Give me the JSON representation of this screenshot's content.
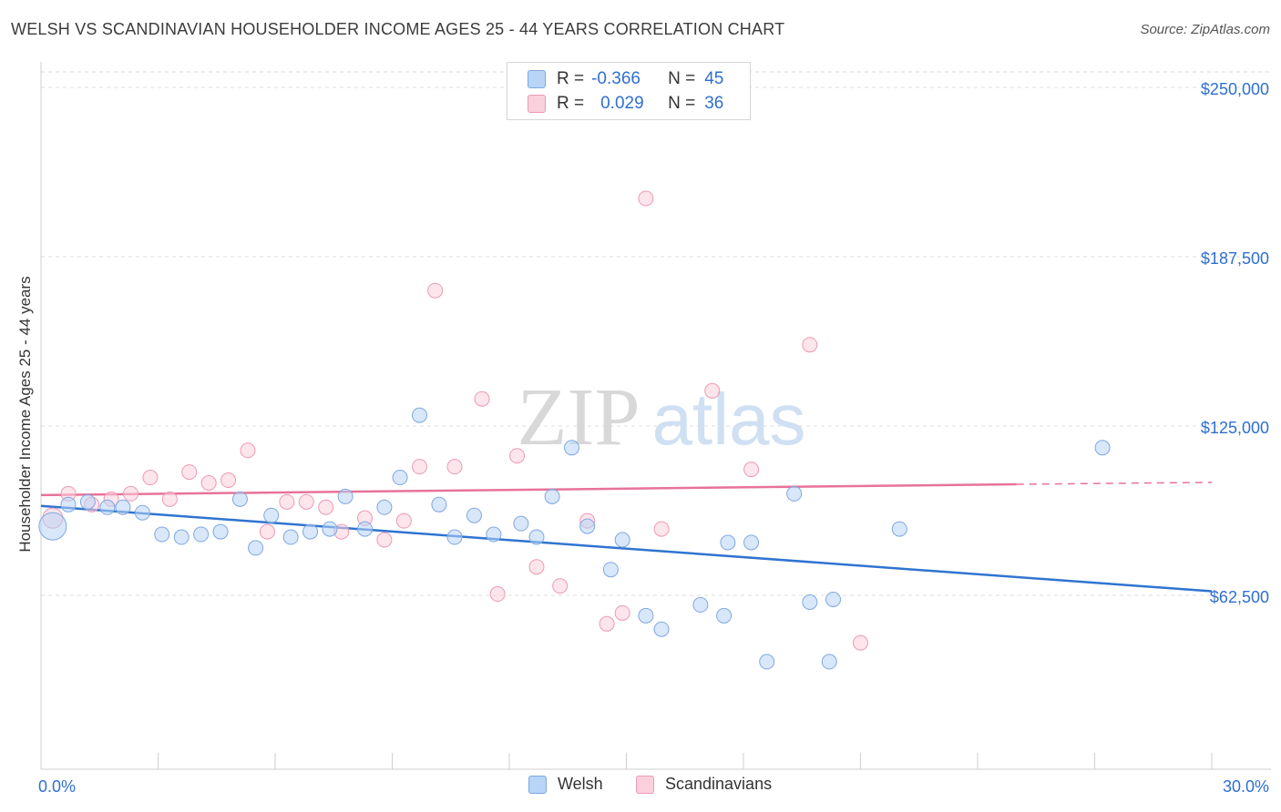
{
  "title": "WELSH VS SCANDINAVIAN HOUSEHOLDER INCOME AGES 25 - 44 YEARS CORRELATION CHART",
  "source": "Source: ZipAtlas.com",
  "watermark": {
    "zip": "ZIP",
    "atlas": "atlas"
  },
  "legend": {
    "rows": [
      {
        "r_label": "R =",
        "r_value": "-0.366",
        "n_label": "N =",
        "n_value": "45",
        "color": "#a9c8f0"
      },
      {
        "r_label": "R =",
        "r_value": "0.029",
        "n_label": "N =",
        "n_value": "36",
        "color": "#f6b6c8"
      }
    ]
  },
  "bottom_legend": [
    {
      "label": "Welsh",
      "color": "#b8d4f6",
      "border": "#7fa8e0"
    },
    {
      "label": "Scandinavians",
      "color": "#fbd0dd",
      "border": "#ec9ab4"
    }
  ],
  "chart_data": {
    "type": "scatter",
    "ylabel": "Householder Income Ages 25 - 44 years",
    "x_tick_labels": [
      "0.0%",
      "30.0%"
    ],
    "y_tick_labels": [
      "$250,000",
      "$187,500",
      "$125,000",
      "$62,500"
    ],
    "y_ticks": [
      250000,
      187500,
      125000,
      62500
    ],
    "xlim": [
      0,
      30
    ],
    "ylim": [
      0,
      262000
    ],
    "grid": true,
    "colors": {
      "welsh": "#2f74d0",
      "scandinavians": "#e8729a",
      "axis_text": "#2f6fd0"
    },
    "series": [
      {
        "name": "Welsh",
        "points": [
          [
            0.3,
            88000
          ],
          [
            0.7,
            96000
          ],
          [
            1.2,
            97000
          ],
          [
            1.7,
            95000
          ],
          [
            2.1,
            95000
          ],
          [
            2.6,
            93000
          ],
          [
            3.1,
            85000
          ],
          [
            3.6,
            84000
          ],
          [
            4.1,
            85000
          ],
          [
            4.6,
            86000
          ],
          [
            5.1,
            98000
          ],
          [
            5.5,
            80000
          ],
          [
            5.9,
            92000
          ],
          [
            6.4,
            84000
          ],
          [
            6.9,
            86000
          ],
          [
            7.4,
            87000
          ],
          [
            7.8,
            99000
          ],
          [
            8.3,
            87000
          ],
          [
            8.8,
            95000
          ],
          [
            9.2,
            106000
          ],
          [
            9.7,
            129000
          ],
          [
            10.2,
            96000
          ],
          [
            10.6,
            84000
          ],
          [
            11.1,
            92000
          ],
          [
            11.6,
            85000
          ],
          [
            12.3,
            89000
          ],
          [
            12.7,
            84000
          ],
          [
            13.1,
            99000
          ],
          [
            13.6,
            117000
          ],
          [
            14.0,
            88000
          ],
          [
            14.6,
            72000
          ],
          [
            14.9,
            83000
          ],
          [
            15.5,
            55000
          ],
          [
            15.9,
            50000
          ],
          [
            16.9,
            59000
          ],
          [
            17.5,
            55000
          ],
          [
            17.6,
            82000
          ],
          [
            18.2,
            82000
          ],
          [
            18.6,
            38000
          ],
          [
            19.3,
            100000
          ],
          [
            19.7,
            60000
          ],
          [
            20.2,
            38000
          ],
          [
            20.3,
            61000
          ],
          [
            22.0,
            87000
          ],
          [
            27.2,
            117000
          ]
        ]
      },
      {
        "name": "Scandinavians",
        "points": [
          [
            0.3,
            91000
          ],
          [
            0.7,
            100000
          ],
          [
            1.3,
            96000
          ],
          [
            1.8,
            98000
          ],
          [
            2.3,
            100000
          ],
          [
            2.8,
            106000
          ],
          [
            3.3,
            98000
          ],
          [
            3.8,
            108000
          ],
          [
            4.3,
            104000
          ],
          [
            4.8,
            105000
          ],
          [
            5.3,
            116000
          ],
          [
            5.8,
            86000
          ],
          [
            6.3,
            97000
          ],
          [
            6.8,
            97000
          ],
          [
            7.3,
            95000
          ],
          [
            7.7,
            86000
          ],
          [
            8.3,
            91000
          ],
          [
            8.8,
            83000
          ],
          [
            9.3,
            90000
          ],
          [
            9.7,
            110000
          ],
          [
            10.1,
            175000
          ],
          [
            10.6,
            110000
          ],
          [
            11.3,
            135000
          ],
          [
            11.7,
            63000
          ],
          [
            12.2,
            114000
          ],
          [
            12.7,
            73000
          ],
          [
            13.3,
            66000
          ],
          [
            14.0,
            90000
          ],
          [
            14.5,
            52000
          ],
          [
            14.9,
            56000
          ],
          [
            15.5,
            209000
          ],
          [
            15.9,
            87000
          ],
          [
            17.2,
            138000
          ],
          [
            18.2,
            109000
          ],
          [
            19.7,
            155000
          ],
          [
            21.0,
            45000
          ]
        ]
      }
    ],
    "trend_lines": [
      {
        "name": "Welsh",
        "from": [
          0,
          95500
        ],
        "to": [
          30,
          64000
        ]
      },
      {
        "name": "Scandinavians",
        "from": [
          0,
          99500
        ],
        "to": [
          25,
          103500
        ],
        "dashed_to": [
          30,
          104200
        ]
      }
    ]
  }
}
